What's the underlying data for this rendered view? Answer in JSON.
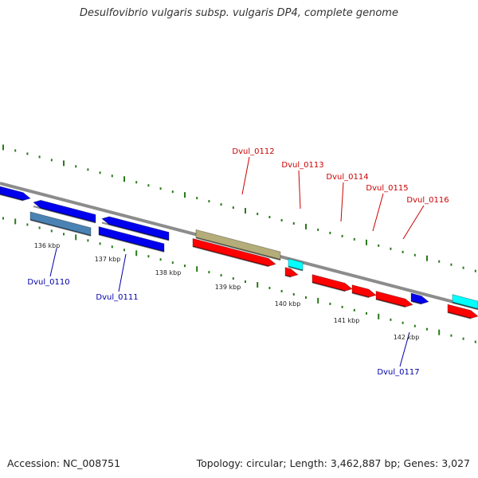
{
  "title": "Desulfovibrio vulgaris subsp. vulgaris DP4, complete genome",
  "footer": {
    "accession": "Accession: NC_008751",
    "summary": "Topology: circular; Length: 3,462,887 bp; Genes: 3,027"
  },
  "colors": {
    "backbone": "#8c8c8c",
    "tick": "#2a7a1a",
    "forward_label": "#cc0000",
    "reverse_label": "#0000aa",
    "gene_red": "#ff0000",
    "gene_blue": "#0000ee",
    "gene_steelblue": "#4a82b4",
    "gene_cyan": "#00ffff",
    "gene_olive": "#b4ad7a"
  },
  "scale": {
    "kbp_labels": [
      "136 kbp",
      "137 kbp",
      "138 kbp",
      "139 kbp",
      "140 kbp",
      "141 kbp",
      "142 kbp"
    ]
  },
  "genes": {
    "forward_labels": [
      "Dvul_0112",
      "Dvul_0113",
      "Dvul_0114",
      "Dvul_0115",
      "Dvul_0116"
    ],
    "reverse_labels": [
      "Dvul_0110",
      "Dvul_0111",
      "Dvul_0117"
    ]
  }
}
